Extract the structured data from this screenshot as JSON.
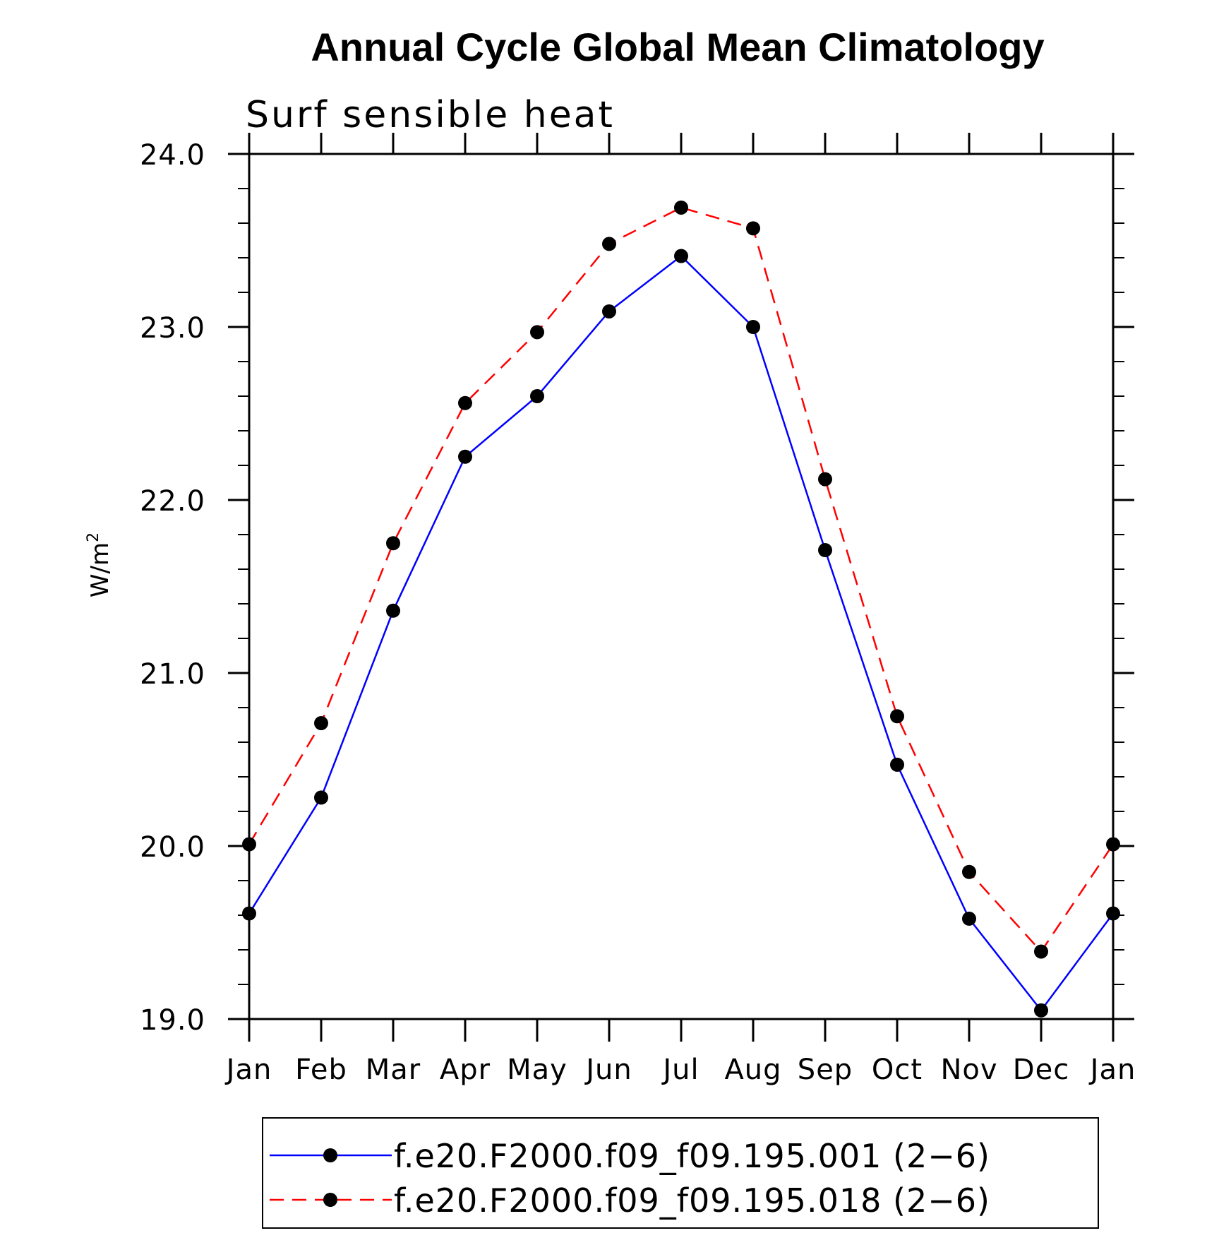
{
  "chart_data": {
    "type": "line",
    "title": "Annual Cycle Global Mean Climatology",
    "subtitle": "Surf sensible heat",
    "ylabel": "W/m",
    "ylabel_superscript": "2",
    "xlabel": "",
    "categories": [
      "Jan",
      "Feb",
      "Mar",
      "Apr",
      "May",
      "Jun",
      "Jul",
      "Aug",
      "Sep",
      "Oct",
      "Nov",
      "Dec",
      "Jan"
    ],
    "ylim": [
      19.0,
      24.0
    ],
    "yticks": [
      "19.0",
      "20.0",
      "21.0",
      "22.0",
      "23.0",
      "24.0"
    ],
    "grid": false,
    "legend_position": "bottom",
    "series": [
      {
        "name": "f.e20.F2000.f09_f09.195.001 (2−6)",
        "color": "#0000ff",
        "line_style": "solid",
        "marker": "filled-circle",
        "values": [
          19.61,
          20.28,
          21.36,
          22.25,
          22.6,
          23.09,
          23.41,
          23.0,
          21.71,
          20.47,
          19.58,
          19.05,
          19.61
        ]
      },
      {
        "name": "f.e20.F2000.f09_f09.195.018 (2−6)",
        "color": "#ff0000",
        "line_style": "dashed",
        "marker": "filled-circle",
        "values": [
          20.01,
          20.71,
          21.75,
          22.56,
          22.97,
          23.48,
          23.69,
          23.57,
          22.12,
          20.75,
          19.85,
          19.39,
          20.01
        ]
      }
    ]
  }
}
